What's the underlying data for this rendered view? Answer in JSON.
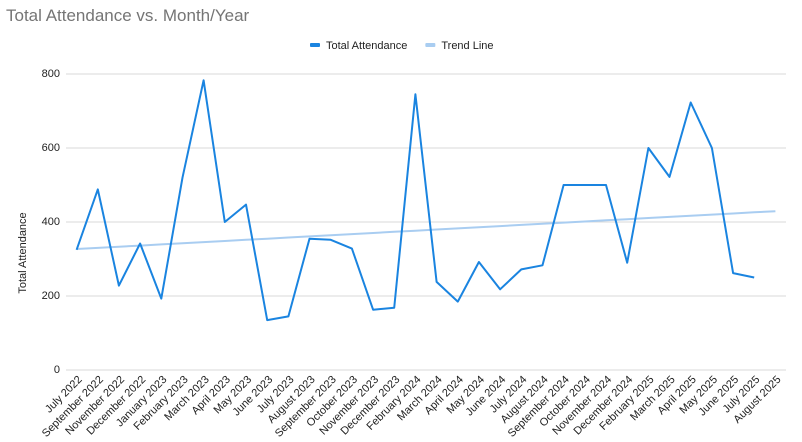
{
  "chart_data": {
    "type": "line",
    "title": "Total Attendance vs. Month/Year",
    "y_label": "Total Attendance",
    "categories": [
      "July 2022",
      "September 2022",
      "November 2022",
      "December 2022",
      "January 2023",
      "February 2023",
      "March 2023",
      "April 2023",
      "May 2023",
      "June 2023",
      "July 2023",
      "August 2023",
      "September 2023",
      "October 2023",
      "November 2023",
      "December 2023",
      "February 2024",
      "March 2024",
      "April 2024",
      "May 2024",
      "June 2024",
      "July 2024",
      "August 2024",
      "September 2024",
      "October 2024",
      "November 2024",
      "December 2024",
      "February 2025",
      "March 2025",
      "April 2025",
      "May 2025",
      "June 2025",
      "July 2025",
      "August 2025"
    ],
    "series": [
      {
        "name": "Total Attendance",
        "color": "#1a84e0",
        "values": [
          325,
          488,
          228,
          342,
          193,
          520,
          783,
          400,
          447,
          135,
          145,
          355,
          352,
          328,
          163,
          168,
          745,
          238,
          185,
          292,
          218,
          272,
          283,
          500,
          500,
          500,
          290,
          600,
          522,
          723,
          600,
          262,
          250,
          null
        ]
      },
      {
        "name": "Trend Line",
        "color": "#a9cdf1",
        "values": [
          327,
          330.1,
          333.2,
          336.3,
          339.4,
          342.5,
          345.6,
          348.7,
          351.8,
          354.9,
          358,
          361.1,
          364.2,
          367.3,
          370.4,
          373.5,
          376.6,
          379.7,
          382.8,
          385.9,
          389,
          392.1,
          395.2,
          398.3,
          401.4,
          404.5,
          407.6,
          410.7,
          413.8,
          416.9,
          420,
          423.1,
          426.2,
          429.3
        ]
      }
    ],
    "ylim": [
      0,
      800
    ],
    "yticks": [
      0,
      200,
      400,
      600,
      800
    ],
    "grid": true,
    "legend": "top"
  }
}
